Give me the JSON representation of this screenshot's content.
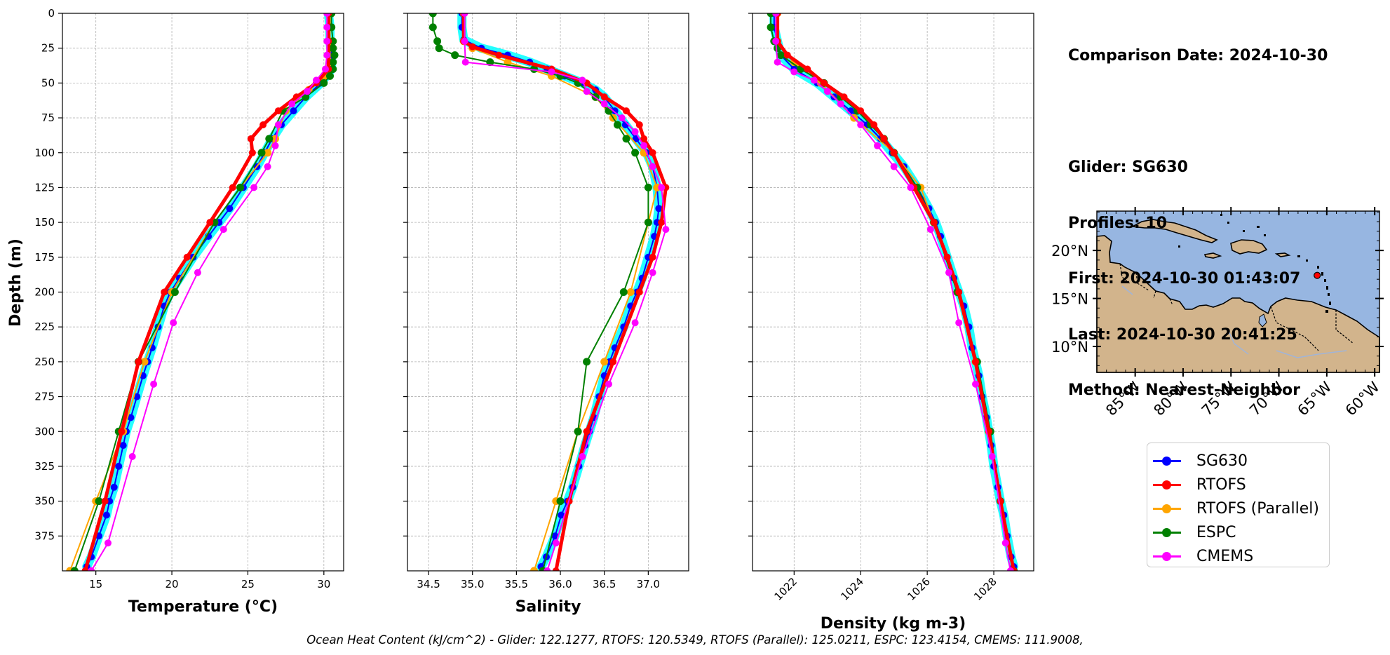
{
  "chart_data": {
    "type": "line",
    "y_axis": {
      "label": "Depth (m)",
      "inverted": true,
      "range": [
        0,
        400
      ],
      "ticks": [
        0,
        25,
        50,
        75,
        100,
        125,
        150,
        175,
        200,
        225,
        250,
        275,
        300,
        325,
        350,
        375
      ],
      "grid": true
    },
    "panels": [
      {
        "id": "temperature",
        "xlabel": "Temperature (°C)",
        "xlim": [
          12.8,
          31.3
        ],
        "xticks": [
          15,
          20,
          25,
          30
        ],
        "xtick_labels": [
          "15",
          "20",
          "25",
          "30"
        ],
        "xtick_rotation": 0,
        "series": [
          {
            "name": "SG630",
            "depth": [
              0,
              10,
              20,
              30,
              40,
              50,
              60,
              70,
              80,
              90,
              100,
              110,
              125,
              140,
              150,
              160,
              175,
              190,
              200,
              210,
              225,
              240,
              250,
              260,
              275,
              290,
              300,
              310,
              325,
              340,
              350,
              360,
              375,
              390,
              397
            ],
            "values": [
              30.3,
              30.4,
              30.4,
              30.5,
              30.5,
              29.8,
              28.8,
              28.0,
              27.2,
              26.6,
              26.1,
              25.6,
              24.7,
              23.8,
              23.1,
              22.4,
              21.4,
              20.5,
              19.9,
              19.5,
              19.1,
              18.7,
              18.4,
              18.1,
              17.7,
              17.3,
              17.0,
              16.8,
              16.5,
              16.2,
              15.9,
              15.7,
              15.2,
              14.7,
              14.4
            ]
          },
          {
            "name": "RTOFS",
            "depth": [
              0,
              20,
              40,
              50,
              60,
              70,
              80,
              90,
              100,
              125,
              150,
              175,
              200,
              250,
              300,
              350,
              400
            ],
            "values": [
              30.3,
              30.3,
              30.3,
              29.5,
              28.2,
              27.0,
              26.0,
              25.2,
              25.3,
              24.0,
              22.5,
              21.0,
              19.5,
              17.8,
              16.7,
              15.6,
              14.3
            ]
          },
          {
            "name": "RTOFS (Parallel)",
            "depth": [
              0,
              20,
              35,
              45,
              55,
              70,
              90,
              100,
              125,
              150,
              200,
              250,
              300,
              350,
              400
            ],
            "values": [
              30.4,
              30.4,
              30.4,
              30.1,
              29.0,
              27.5,
              26.8,
              26.3,
              24.5,
              22.8,
              20.0,
              18.2,
              16.8,
              15.0,
              13.3
            ]
          },
          {
            "name": "ESPC",
            "depth": [
              0,
              10,
              20,
              25,
              30,
              35,
              40,
              45,
              50,
              60,
              70,
              90,
              100,
              125,
              150,
              200,
              250,
              300,
              350,
              400
            ],
            "values": [
              30.5,
              30.5,
              30.6,
              30.6,
              30.7,
              30.6,
              30.6,
              30.4,
              30.0,
              28.8,
              27.3,
              26.4,
              25.9,
              24.5,
              22.8,
              20.2,
              17.8,
              16.5,
              15.2,
              13.6
            ]
          },
          {
            "name": "CMEMS",
            "depth": [
              0,
              10,
              20,
              30,
              40,
              48,
              56,
              65,
              80,
              95,
              110,
              125,
              155,
              186,
              222,
              266,
              318,
              380,
              400
            ],
            "values": [
              30.2,
              30.2,
              30.2,
              30.2,
              30.1,
              29.5,
              28.9,
              27.9,
              27.0,
              26.8,
              26.3,
              25.4,
              23.4,
              21.7,
              20.1,
              18.8,
              17.4,
              15.8,
              14.7
            ]
          }
        ]
      },
      {
        "id": "salinity",
        "xlabel": "Salinity",
        "xlim": [
          34.26,
          37.46
        ],
        "xticks": [
          34.5,
          35.0,
          35.5,
          36.0,
          36.5,
          37.0
        ],
        "xtick_labels": [
          "34.5",
          "35.0",
          "35.5",
          "36.0",
          "36.5",
          "37.0"
        ],
        "xtick_rotation": 0,
        "series": [
          {
            "name": "SG630",
            "depth": [
              0,
              10,
              19,
              25,
              30,
              35,
              40,
              45,
              50,
              55,
              60,
              70,
              80,
              90,
              100,
              110,
              125,
              140,
              150,
              160,
              175,
              190,
              200,
              210,
              225,
              240,
              250,
              260,
              275,
              290,
              300,
              310,
              325,
              340,
              350,
              360,
              375,
              390,
              397
            ],
            "values": [
              34.88,
              34.88,
              34.9,
              35.1,
              35.4,
              35.65,
              35.85,
              36.05,
              36.25,
              36.4,
              36.5,
              36.62,
              36.74,
              36.86,
              36.98,
              37.05,
              37.1,
              37.12,
              37.1,
              37.07,
              37.0,
              36.93,
              36.87,
              36.8,
              36.72,
              36.62,
              36.56,
              36.5,
              36.44,
              36.38,
              36.33,
              36.28,
              36.21,
              36.14,
              36.08,
              36.01,
              35.94,
              35.84,
              35.78
            ]
          },
          {
            "name": "RTOFS",
            "depth": [
              0,
              20,
              24,
              30,
              40,
              50,
              60,
              70,
              80,
              90,
              100,
              125,
              150,
              175,
              200,
              250,
              300,
              350,
              400
            ],
            "values": [
              34.9,
              34.9,
              35.0,
              35.3,
              35.9,
              36.3,
              36.5,
              36.75,
              36.9,
              36.95,
              37.05,
              37.2,
              37.15,
              37.05,
              36.9,
              36.6,
              36.3,
              36.1,
              35.95
            ]
          },
          {
            "name": "RTOFS (Parallel)",
            "depth": [
              0,
              20,
              25,
              35,
              45,
              60,
              75,
              100,
              125,
              150,
              200,
              250,
              300,
              350,
              400
            ],
            "values": [
              34.9,
              34.9,
              35.0,
              35.4,
              35.9,
              36.4,
              36.6,
              36.95,
              37.1,
              37.0,
              36.8,
              36.5,
              36.2,
              35.95,
              35.7
            ]
          },
          {
            "name": "ESPC",
            "depth": [
              0,
              10,
              20,
              25,
              30,
              35,
              40,
              45,
              50,
              60,
              70,
              80,
              90,
              100,
              125,
              150,
              200,
              250,
              300,
              350,
              400
            ],
            "values": [
              34.55,
              34.55,
              34.6,
              34.62,
              34.8,
              35.2,
              35.7,
              36.0,
              36.2,
              36.4,
              36.55,
              36.65,
              36.75,
              36.85,
              37.0,
              37.0,
              36.72,
              36.3,
              36.2,
              36.0,
              35.8
            ]
          },
          {
            "name": "CMEMS",
            "depth": [
              0,
              20,
              35,
              42,
              48,
              56,
              65,
              75,
              85,
              95,
              110,
              125,
              155,
              186,
              222,
              266,
              318,
              380,
              400
            ],
            "values": [
              34.91,
              34.91,
              34.92,
              35.9,
              36.25,
              36.3,
              36.5,
              36.7,
              36.85,
              36.95,
              37.05,
              37.15,
              37.2,
              37.05,
              36.85,
              36.55,
              36.25,
              35.95,
              35.85
            ]
          }
        ]
      },
      {
        "id": "density",
        "xlabel": "Density (kg m-3)",
        "xlim": [
          1020.75,
          1029.2
        ],
        "xticks": [
          1022,
          1024,
          1026,
          1028
        ],
        "xtick_labels": [
          "1022",
          "1024",
          "1026",
          "1028"
        ],
        "xtick_rotation": 45,
        "series": [
          {
            "name": "SG630",
            "depth": [
              0,
              10,
              20,
              30,
              40,
              50,
              60,
              70,
              80,
              90,
              100,
              110,
              125,
              140,
              150,
              160,
              175,
              190,
              200,
              210,
              225,
              240,
              250,
              260,
              275,
              290,
              300,
              310,
              325,
              340,
              350,
              360,
              375,
              390,
              397
            ],
            "values": [
              1021.4,
              1021.4,
              1021.5,
              1021.6,
              1022.0,
              1022.7,
              1023.2,
              1023.7,
              1024.2,
              1024.6,
              1024.95,
              1025.3,
              1025.7,
              1026.05,
              1026.25,
              1026.4,
              1026.6,
              1026.8,
              1026.95,
              1027.1,
              1027.25,
              1027.35,
              1027.45,
              1027.55,
              1027.65,
              1027.78,
              1027.85,
              1027.92,
              1028.0,
              1028.12,
              1028.2,
              1028.3,
              1028.4,
              1028.52,
              1028.6
            ]
          },
          {
            "name": "RTOFS",
            "depth": [
              0,
              20,
              30,
              40,
              50,
              60,
              70,
              80,
              90,
              100,
              125,
              150,
              175,
              200,
              250,
              300,
              350,
              400
            ],
            "values": [
              1021.5,
              1021.5,
              1021.8,
              1022.4,
              1022.9,
              1023.5,
              1024.0,
              1024.4,
              1024.7,
              1025.0,
              1025.6,
              1026.2,
              1026.6,
              1026.95,
              1027.45,
              1027.85,
              1028.2,
              1028.6
            ]
          },
          {
            "name": "RTOFS (Parallel)",
            "depth": [
              0,
              20,
              35,
              50,
              75,
              100,
              125,
              150,
              200,
              250,
              300,
              350,
              400
            ],
            "values": [
              1021.5,
              1021.5,
              1022.0,
              1022.8,
              1023.8,
              1025.0,
              1025.8,
              1026.2,
              1026.9,
              1027.45,
              1027.85,
              1028.2,
              1028.6
            ]
          },
          {
            "name": "ESPC",
            "depth": [
              0,
              10,
              20,
              25,
              30,
              40,
              50,
              60,
              70,
              80,
              90,
              100,
              125,
              150,
              200,
              250,
              300,
              350,
              400
            ],
            "values": [
              1021.3,
              1021.3,
              1021.4,
              1021.5,
              1021.6,
              1022.2,
              1022.9,
              1023.4,
              1023.9,
              1024.3,
              1024.7,
              1025.0,
              1025.7,
              1026.2,
              1026.9,
              1027.5,
              1027.9,
              1028.2,
              1028.6
            ]
          },
          {
            "name": "CMEMS",
            "depth": [
              0,
              20,
              35,
              42,
              48,
              56,
              65,
              80,
              95,
              110,
              125,
              155,
              186,
              222,
              266,
              318,
              380,
              400
            ],
            "values": [
              1021.45,
              1021.45,
              1021.5,
              1022.0,
              1022.6,
              1023.0,
              1023.4,
              1024.0,
              1024.5,
              1025.0,
              1025.5,
              1026.1,
              1026.65,
              1026.95,
              1027.45,
              1027.95,
              1028.35,
              1028.5
            ]
          }
        ]
      }
    ]
  },
  "info": {
    "comparison_date": "Comparison Date: 2024-10-30",
    "glider": "Glider: SG630",
    "profiles": "Profiles: 10",
    "first": "First: 2024-10-30 01:43:07",
    "last": "Last: 2024-10-30 20:41:25",
    "method": "Method: Nearest-Neighbor"
  },
  "map": {
    "lon_range": [
      -89,
      -59.5
    ],
    "lat_range": [
      7.3,
      24.1
    ],
    "lat_ticks": [
      {
        "value": 20,
        "label": "20°N"
      },
      {
        "value": 15,
        "label": "15°N"
      },
      {
        "value": 10,
        "label": "10°N"
      }
    ],
    "lon_ticks": [
      {
        "value": -85,
        "label": "85°W"
      },
      {
        "value": -80,
        "label": "80°W"
      },
      {
        "value": -75,
        "label": "75°W"
      },
      {
        "value": -70,
        "label": "70°W"
      },
      {
        "value": -65,
        "label": "65°W"
      },
      {
        "value": -60,
        "label": "60°W"
      }
    ],
    "ocean_color": "#97b6e1",
    "land_color": "#d2b48c",
    "glider_position": {
      "lon": -66.0,
      "lat": 17.4
    },
    "marker_color": "#ff0000"
  },
  "legend": [
    {
      "label": "SG630",
      "color": "#0000ff"
    },
    {
      "label": "RTOFS",
      "color": "#ff0000"
    },
    {
      "label": "RTOFS (Parallel)",
      "color": "#ffa500"
    },
    {
      "label": "ESPC",
      "color": "#008000"
    },
    {
      "label": "CMEMS",
      "color": "#ff00ff"
    }
  ],
  "footnote": "Ocean Heat Content (kJ/cm^2) - Glider: 122.1277,  RTOFS: 120.5349,  RTOFS (Parallel): 125.0211,  ESPC: 123.4154,  CMEMS: 111.9008,"
}
